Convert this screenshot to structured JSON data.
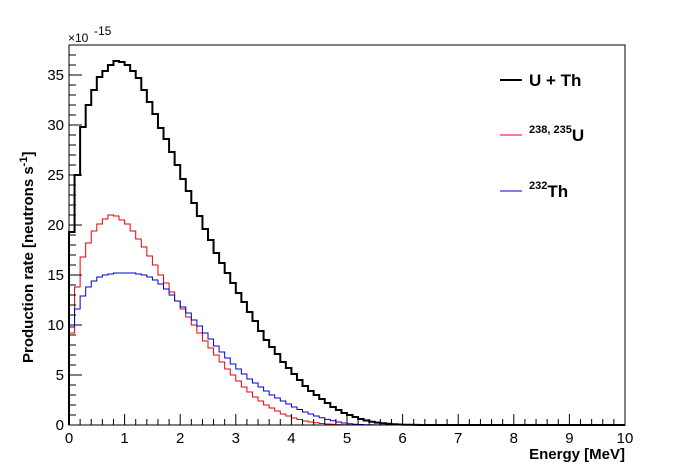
{
  "chart_data": {
    "type": "line",
    "subtype": "step-histogram",
    "xlabel": "Energy [MeV]",
    "ylabel": "Production rate [neutrons s^-1]",
    "ylabel_parts": {
      "main": "Production rate [neutrons s",
      "sup": "-1",
      "end": "]"
    },
    "y_multiplier": {
      "base": "×10",
      "exponent": "-15"
    },
    "xlim": [
      0,
      10
    ],
    "ylim": [
      0,
      38
    ],
    "x_ticks": [
      "0",
      "1",
      "2",
      "3",
      "4",
      "5",
      "6",
      "7",
      "8",
      "9",
      "10"
    ],
    "y_ticks": [
      "0",
      "5",
      "10",
      "15",
      "20",
      "25",
      "30",
      "35"
    ],
    "bin_width": 0.1,
    "grid": false,
    "legend_position": "top-right",
    "series": [
      {
        "id": "uth",
        "name": "U + Th",
        "color": "#000000",
        "legend": {
          "main": "U + Th",
          "sup": ""
        },
        "values": [
          19.3,
          25.0,
          29.8,
          32.0,
          33.5,
          34.8,
          35.4,
          36.0,
          36.4,
          36.3,
          36.0,
          35.4,
          34.7,
          33.5,
          32.3,
          31.1,
          29.7,
          28.6,
          27.3,
          26.0,
          24.6,
          23.4,
          22.2,
          20.9,
          19.6,
          18.5,
          17.2,
          16.2,
          15.2,
          14.2,
          13.2,
          12.3,
          11.3,
          10.4,
          9.4,
          8.5,
          7.8,
          7.1,
          6.3,
          5.7,
          5.1,
          4.5,
          3.9,
          3.4,
          3.0,
          2.6,
          2.2,
          1.8,
          1.5,
          1.2,
          1.0,
          0.8,
          0.6,
          0.45,
          0.33,
          0.24,
          0.17,
          0.12,
          0.08,
          0.05,
          0.03,
          0.02,
          0.01,
          0.0,
          0.0,
          0.0,
          0.0,
          0.0,
          0.0,
          0.0,
          0.0,
          0.0,
          0.0,
          0.0,
          0.0,
          0.0,
          0.0,
          0.0,
          0.0,
          0.0,
          0.0,
          0.0,
          0.0,
          0.0,
          0.0,
          0.0,
          0.0,
          0.0,
          0.0,
          0.0,
          0.0,
          0.0,
          0.0,
          0.0,
          0.0,
          0.0,
          0.0,
          0.0,
          0.0,
          0.0
        ]
      },
      {
        "id": "u",
        "name": "238, 235U",
        "color": "#e8000b",
        "legend": {
          "main": "U",
          "sup": "238, 235"
        },
        "values": [
          9.2,
          13.8,
          16.8,
          18.2,
          19.4,
          20.1,
          20.6,
          21.0,
          20.9,
          20.5,
          20.1,
          19.4,
          18.6,
          17.8,
          16.9,
          16.0,
          15.0,
          14.2,
          13.3,
          12.4,
          11.6,
          10.8,
          10.0,
          9.2,
          8.4,
          7.7,
          7.0,
          6.3,
          5.6,
          5.0,
          4.4,
          3.8,
          3.3,
          2.8,
          2.4,
          2.0,
          1.7,
          1.4,
          1.1,
          0.9,
          0.7,
          0.55,
          0.4,
          0.3,
          0.22,
          0.15,
          0.1,
          0.07,
          0.04,
          0.02,
          0.01,
          0.0,
          0.0,
          0.0,
          0.0,
          0.0,
          0.0,
          0.0,
          0.0,
          0.0,
          0.0,
          0.0,
          0.0,
          0.0,
          0.0,
          0.0,
          0.0,
          0.0,
          0.0,
          0.0,
          0.0,
          0.0,
          0.0,
          0.0,
          0.0,
          0.0,
          0.0,
          0.0,
          0.0,
          0.0,
          0.0,
          0.0,
          0.0,
          0.0,
          0.0,
          0.0,
          0.0,
          0.0,
          0.0,
          0.0,
          0.0,
          0.0,
          0.0,
          0.0,
          0.0,
          0.0,
          0.0,
          0.0,
          0.0,
          0.0
        ]
      },
      {
        "id": "th",
        "name": "232Th",
        "color": "#0000cc",
        "legend": {
          "main": "Th",
          "sup": "232"
        },
        "values": [
          9.8,
          11.6,
          12.9,
          13.8,
          14.4,
          14.8,
          15.0,
          15.1,
          15.2,
          15.2,
          15.2,
          15.2,
          15.1,
          15.0,
          14.8,
          14.5,
          14.1,
          13.6,
          13.0,
          12.4,
          11.8,
          11.2,
          10.5,
          9.9,
          9.2,
          8.6,
          7.9,
          7.3,
          6.7,
          6.1,
          5.6,
          5.1,
          4.6,
          4.2,
          3.8,
          3.4,
          3.0,
          2.7,
          2.4,
          2.1,
          1.8,
          1.55,
          1.3,
          1.1,
          0.9,
          0.72,
          0.56,
          0.42,
          0.3,
          0.2,
          0.13,
          0.08,
          0.05,
          0.03,
          0.02,
          0.01,
          0.0,
          0.0,
          0.0,
          0.0,
          0.0,
          0.0,
          0.0,
          0.0,
          0.0,
          0.0,
          0.0,
          0.0,
          0.0,
          0.0,
          0.0,
          0.0,
          0.0,
          0.0,
          0.0,
          0.0,
          0.0,
          0.0,
          0.0,
          0.0,
          0.0,
          0.0,
          0.0,
          0.0,
          0.0,
          0.0,
          0.0,
          0.0,
          0.0,
          0.0,
          0.0,
          0.0,
          0.0,
          0.0,
          0.0,
          0.0,
          0.0,
          0.0,
          0.0,
          0.0
        ]
      }
    ]
  }
}
